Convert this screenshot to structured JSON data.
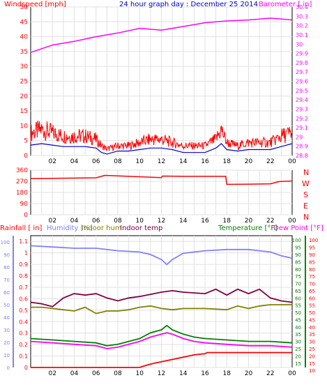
{
  "colors": {
    "wind_gust": "#ff0000",
    "wind_avg": "#0000cc",
    "barometer": "#ff00ff",
    "direction": "#ff0000",
    "rainfall": "#ff0000",
    "humidity": "#8080ff",
    "indoor_hum": "#808000",
    "indoor_temp": "#800040",
    "temperature": "#008000",
    "dew_point": "#ff00ff",
    "grid": "#e0e0e0"
  },
  "chart_data": [
    {
      "type": "line",
      "title": "24 hour graph day : December 25 2014",
      "left_label": "Windspeed [mph]",
      "right_label": "Barometer [ in]",
      "x_ticks": [
        "02",
        "04",
        "06",
        "08",
        "10",
        "12",
        "14",
        "16",
        "18",
        "20",
        "22",
        "00"
      ],
      "x_range_hours": [
        0,
        24
      ],
      "y_left_range": [
        0,
        50
      ],
      "y_left_ticks": [
        "0",
        "5",
        "10",
        "15",
        "20",
        "25",
        "30",
        "35",
        "40",
        "45",
        "50"
      ],
      "y_right_range": [
        28.8,
        30.4
      ],
      "y_right_ticks": [
        "28.8",
        "28.9",
        "29",
        "29.1",
        "29.2",
        "29.3",
        "29.4",
        "29.5",
        "29.6",
        "29.7",
        "29.8",
        "29.9",
        "30",
        "30.1",
        "30.2",
        "30.3",
        "30.4"
      ],
      "series": [
        {
          "name": "Windspeed",
          "axis": "left",
          "x": [
            0,
            1,
            2,
            3,
            4,
            5,
            6,
            6.5,
            7,
            8,
            9,
            10,
            11,
            12,
            13,
            14,
            15,
            16,
            17,
            17.5,
            18,
            19,
            20,
            21,
            22,
            23,
            24
          ],
          "y": [
            7,
            8,
            7,
            6,
            6,
            6,
            5,
            3,
            2,
            3,
            3,
            4,
            5,
            5,
            4,
            3,
            3,
            3,
            5,
            8,
            4,
            3,
            4,
            4,
            4,
            6,
            7
          ]
        },
        {
          "name": "Average",
          "axis": "left",
          "x": [
            0,
            1,
            2,
            3,
            4,
            5,
            6,
            6.5,
            7,
            8,
            9,
            10,
            11,
            12,
            13,
            14,
            15,
            16,
            17,
            17.5,
            18,
            19,
            20,
            21,
            22,
            23,
            24
          ],
          "y": [
            3.5,
            4,
            3.5,
            3,
            3,
            3,
            2.5,
            1,
            0.5,
            1.5,
            1.5,
            2,
            2.5,
            2.5,
            2,
            1,
            1,
            1,
            2.5,
            4,
            2,
            1.5,
            2,
            2,
            2,
            3,
            4
          ]
        },
        {
          "name": "Barometer",
          "axis": "right",
          "x": [
            0,
            2,
            4,
            6,
            8,
            10,
            12,
            14,
            16,
            18,
            20,
            22,
            23,
            24
          ],
          "y": [
            29.91,
            29.99,
            30.03,
            30.08,
            30.12,
            30.17,
            30.15,
            30.19,
            30.23,
            30.25,
            30.26,
            30.28,
            30.27,
            30.26
          ]
        }
      ]
    },
    {
      "type": "line",
      "right_label": [
        "N",
        "W",
        "S",
        "E",
        "N"
      ],
      "y_range": [
        0,
        360
      ],
      "y_ticks": [
        "0",
        "90",
        "180",
        "270",
        "360"
      ],
      "series": [
        {
          "name": "Wind direction",
          "x": [
            0,
            6,
            6.8,
            12,
            12.1,
            14,
            17.9,
            18,
            20,
            22,
            22.8,
            24
          ],
          "y": [
            292,
            298,
            318,
            300,
            312,
            310,
            310,
            245,
            247,
            250,
            268,
            272
          ]
        }
      ]
    },
    {
      "type": "line",
      "left_label": "Rainfall [ in]",
      "labels": [
        "Humidity [%]",
        "Indoor hum",
        "Indoor temp",
        "Temperature  [°F]",
        "Dew Point  [°F]"
      ],
      "y_left_ticks": [
        "0",
        "0.1",
        "0.2",
        "0.3",
        "0.4",
        "0.5",
        "0.6",
        "0.7",
        "0.8",
        "0.9",
        "1",
        "1.1"
      ],
      "y_left_range": [
        0,
        1.15
      ],
      "y_hum_ticks": [
        "0",
        "10",
        "20",
        "30",
        "40",
        "50",
        "60",
        "70",
        "80",
        "90",
        "100"
      ],
      "y_temp_ticks": [
        "15",
        "20",
        "25",
        "30",
        "35",
        "40",
        "45",
        "50",
        "55",
        "60",
        "65",
        "70",
        "75",
        "80",
        "85",
        "90",
        "95",
        "100"
      ],
      "y_temp_range": [
        12,
        103
      ],
      "y_temp_ticks_right": [
        "10",
        "15",
        "20",
        "25",
        "30",
        "35",
        "40",
        "45",
        "50",
        "55",
        "60",
        "65",
        "70",
        "75",
        "80",
        "85",
        "90",
        "95",
        "100"
      ],
      "series": [
        {
          "name": "Humidity",
          "unit": "%",
          "x": [
            0,
            2,
            4,
            6,
            8,
            10,
            11,
            12,
            12.5,
            13,
            14,
            16,
            18,
            20,
            22,
            23,
            24
          ],
          "y": [
            97,
            96,
            95,
            95,
            93,
            92,
            90,
            86,
            82,
            86,
            91,
            93,
            94,
            94,
            92,
            89,
            87
          ]
        },
        {
          "name": "Indoor temp",
          "unit": "F",
          "x": [
            0,
            1,
            2,
            3,
            4,
            5,
            6,
            7,
            8,
            9,
            10,
            12,
            13,
            14,
            16,
            17,
            18,
            19,
            20,
            21,
            22,
            23,
            24
          ],
          "y": [
            57,
            56,
            54,
            60,
            63,
            62,
            63,
            60,
            58,
            60,
            61,
            64,
            65,
            64,
            63,
            66,
            62,
            66,
            63,
            66,
            60,
            58,
            57
          ]
        },
        {
          "name": "Indoor hum",
          "unit": "%",
          "x": [
            0,
            1,
            2,
            3,
            4,
            5,
            6,
            7,
            8,
            9,
            10,
            11,
            12,
            13,
            14,
            16,
            18,
            19,
            20,
            21,
            22,
            23,
            24
          ],
          "y": [
            48,
            48,
            47,
            46,
            45,
            48,
            43,
            45,
            45,
            46,
            48,
            49,
            47,
            46,
            47,
            47,
            46,
            49,
            47,
            49,
            50,
            50,
            50
          ]
        },
        {
          "name": "Temperature",
          "unit": "F",
          "x": [
            0,
            2,
            4,
            6,
            7,
            8,
            9,
            10,
            11,
            12,
            12.5,
            13,
            14,
            15,
            16,
            18,
            20,
            22,
            24
          ],
          "y": [
            32,
            31,
            30,
            29,
            27,
            28,
            30,
            32,
            36,
            38,
            41,
            38,
            35,
            33,
            32,
            31,
            30,
            30,
            29
          ]
        },
        {
          "name": "Dew Point",
          "unit": "F",
          "x": [
            0,
            2,
            4,
            6,
            7,
            8,
            9,
            10,
            11,
            12,
            12.5,
            13,
            14,
            15,
            16,
            18,
            20,
            22,
            24
          ],
          "y": [
            30,
            29,
            28,
            27,
            25,
            26,
            28,
            30,
            33,
            35,
            36,
            35,
            32,
            30,
            29,
            28,
            27,
            27,
            26
          ]
        },
        {
          "name": "Rainfall",
          "unit": "in",
          "x": [
            0,
            10,
            10.3,
            11,
            12,
            13,
            14,
            15,
            16,
            16.2,
            24
          ],
          "y": [
            0,
            0,
            0.01,
            0.03,
            0.05,
            0.07,
            0.09,
            0.11,
            0.12,
            0.13,
            0.13
          ]
        }
      ]
    }
  ]
}
